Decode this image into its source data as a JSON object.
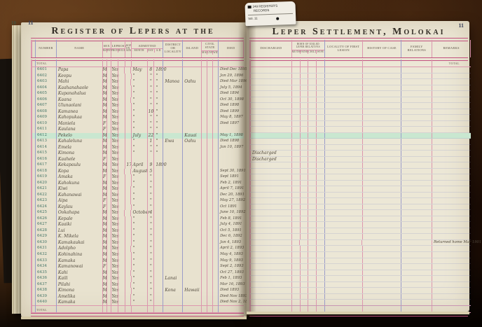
{
  "book": {
    "left_page": {
      "page_number": "11",
      "prev_page_number": "10",
      "title": "Register of Lepers at the",
      "total_label": "Total",
      "headers": {
        "number": "Number",
        "name": "Name",
        "sex": {
          "label": "Sex",
          "subs": [
            "Male",
            "Fem."
          ]
        },
        "leprosy": {
          "label": "Leprosy",
          "subs": [
            "Pron.",
            "Doubt."
          ]
        },
        "age": "Age on Adm.",
        "admitted": {
          "label": "Admitted",
          "subs": [
            "Month",
            "Day",
            "A.D."
          ]
        },
        "district": "District or Locality",
        "island": "Island",
        "civil": {
          "label": "Civil State",
          "subs": [
            "Mar.",
            "Unm.",
            "Wid."
          ]
        },
        "died": "Died"
      }
    },
    "right_page": {
      "page_number": "11",
      "title": "Leper Settlement, Molokai",
      "total_label": "Total",
      "headers": {
        "discharged": "Discharged",
        "born": {
          "label": "Born of Exiled Leper Relatives",
          "subs": [
            "Mother",
            "Father",
            "Child.",
            "Wife"
          ]
        },
        "locality": "Locality of First Lesion",
        "history": "History of Case",
        "family": "Family Relations",
        "remarks": "Remarks"
      }
    },
    "tag": {
      "line1": "249  REGISTER'S",
      "line2": "RECORDS",
      "line3": "Vol. 11"
    },
    "rows": [
      {
        "n": "6401",
        "name": "Papa",
        "sx": "M",
        "yes": "Yes",
        "m": "May",
        "d": "8",
        "y": "1890",
        "died": "Died Dec 1895"
      },
      {
        "n": "6402",
        "name": "Keopu",
        "sx": "M",
        "yes": "Yes",
        "m": "\"",
        "d": "\"",
        "y": "\"",
        "died": "Jan 29, 1896"
      },
      {
        "n": "6403",
        "name": "Mahi",
        "sx": "M",
        "yes": "Yes",
        "m": "\"",
        "d": "\"",
        "y": "\"",
        "dist": "Manoa",
        "isl": "Oahu",
        "died": "Died Mar 1896"
      },
      {
        "n": "6404",
        "name": "Kaahanahaole",
        "sx": "M",
        "yes": "Yes",
        "m": "\"",
        "d": "\"",
        "y": "\"",
        "died": "July 5, 1894"
      },
      {
        "n": "6405",
        "name": "Kupanahalua",
        "sx": "M",
        "yes": "Yes",
        "m": "\"",
        "d": "\"",
        "y": "\"",
        "died": "Died 1894"
      },
      {
        "n": "6406",
        "name": "Kaana",
        "sx": "M",
        "yes": "Yes",
        "m": "\"",
        "d": "\"",
        "y": "\"",
        "died": "Oct 30, 1898"
      },
      {
        "n": "6407",
        "name": "Ulunaolani",
        "sx": "M",
        "yes": "Yes",
        "m": "\"",
        "d": "\"",
        "y": "\"",
        "died": "Died 1898"
      },
      {
        "n": "6408",
        "name": "Kamanea",
        "sx": "M",
        "yes": "Yes",
        "m": "\"",
        "d": "10",
        "y": "\"",
        "died": "Died 1899"
      },
      {
        "n": "6409",
        "name": "Kahopukaa",
        "sx": "M",
        "yes": "Yes",
        "m": "\"",
        "d": "\"",
        "y": "\"",
        "died": "May 8, 1897"
      },
      {
        "n": "6410",
        "name": "Maniela",
        "sx": "F",
        "yes": "Yes",
        "m": "\"",
        "d": "\"",
        "y": "\"",
        "died": "Died 1897"
      },
      {
        "n": "6411",
        "name": "Kaulana",
        "sx": "F",
        "yes": "Yes",
        "m": "\"",
        "d": "\"",
        "y": "\""
      },
      {
        "n": "6412",
        "name": "Pekelo",
        "sx": "M",
        "yes": "Yes",
        "m": "July",
        "d": "22",
        "y": "\"",
        "isl": "Kauai",
        "died": "May 1, 1898",
        "hl": true
      },
      {
        "n": "6413",
        "name": "Kahaleluna",
        "sx": "M",
        "yes": "Yes",
        "m": "\"",
        "d": "1",
        "y": "\"",
        "dist": "Ewa",
        "isl": "Oahu",
        "died": "Died 1898"
      },
      {
        "n": "6414",
        "name": "Emela",
        "sx": "M",
        "yes": "Yes",
        "m": "\"",
        "d": "\"",
        "y": "\"",
        "died": "Jan 10, 1897"
      },
      {
        "n": "6415",
        "name": "Kimona",
        "sx": "M",
        "yes": "Yes",
        "m": "\"",
        "d": "\"",
        "y": "\"",
        "disch": "Discharged"
      },
      {
        "n": "6416",
        "name": "Kaahele",
        "sx": "F",
        "yes": "Yes",
        "disch": "Discharged"
      },
      {
        "n": "6417",
        "name": "Kekapaulu",
        "sx": "M",
        "yes": "Yes",
        "age": "17",
        "m": "April",
        "d": "9",
        "y": "1890"
      },
      {
        "n": "6418",
        "name": "Kopa",
        "sx": "M",
        "yes": "Yes",
        "m": "August",
        "d": "5",
        "died": "Sept 30, 1891"
      },
      {
        "n": "6419",
        "name": "Amaka",
        "sx": "F",
        "yes": "Yes",
        "m": "\"",
        "d": "\"",
        "died": "Sept 1891"
      },
      {
        "n": "6420",
        "name": "Kahokuna",
        "sx": "M",
        "yes": "Yes",
        "m": "\"",
        "d": "\"",
        "died": "Feb 2, 1891"
      },
      {
        "n": "6421",
        "name": "Kiwi",
        "sx": "M",
        "yes": "Yes",
        "m": "\"",
        "d": "\"",
        "died": "April 7, 1891"
      },
      {
        "n": "6422",
        "name": "Kahanawai",
        "sx": "M",
        "yes": "Yes",
        "m": "\"",
        "d": "\"",
        "died": "Dec 20, 1891"
      },
      {
        "n": "6423",
        "name": "Aipa",
        "sx": "F",
        "yes": "Yes",
        "m": "\"",
        "d": "\"",
        "died": "May 27, 1892"
      },
      {
        "n": "6424",
        "name": "Kaylau",
        "sx": "F",
        "yes": "Yes",
        "m": "\"",
        "d": "\"",
        "died": "Oct 1891"
      },
      {
        "n": "6425",
        "name": "Ookahapa",
        "sx": "M",
        "yes": "Yes",
        "m": "October",
        "d": "4",
        "died": "June 10, 1892"
      },
      {
        "n": "6426",
        "name": "Kepale",
        "sx": "M",
        "yes": "Yes",
        "m": "\"",
        "d": "\"",
        "died": "Feb 8, 1891"
      },
      {
        "n": "6427",
        "name": "Kaaiki",
        "sx": "M",
        "yes": "Yes",
        "m": "\"",
        "d": "\"",
        "died": "July 4, 1891"
      },
      {
        "n": "6428",
        "name": "Lui",
        "sx": "M",
        "yes": "Yes",
        "m": "\"",
        "d": "\"",
        "died": "Oct 5, 1891"
      },
      {
        "n": "6429",
        "name": "K. Mikela",
        "sx": "M",
        "yes": "Yes",
        "m": "\"",
        "d": "\"",
        "died": "Dec 6, 1892"
      },
      {
        "n": "6430",
        "name": "Kamakaukai",
        "sx": "M",
        "yes": "Yes",
        "m": "\"",
        "d": "\"",
        "died": "Jan 4, 1893",
        "rem": "Returned home Mar 1901"
      },
      {
        "n": "6431",
        "name": "Adolpho",
        "sx": "M",
        "yes": "Yes",
        "m": "\"",
        "d": "\"",
        "died": "April 2, 1893"
      },
      {
        "n": "6432",
        "name": "Kohinahina",
        "sx": "M",
        "yes": "Yes",
        "m": "\"",
        "d": "\"",
        "died": "May 4, 1893"
      },
      {
        "n": "6433",
        "name": "Kamaka",
        "sx": "M",
        "yes": "Yes",
        "m": "\"",
        "d": "\"",
        "died": "May 9, 1893"
      },
      {
        "n": "6434",
        "name": "Kamanowai",
        "sx": "F",
        "yes": "Yes",
        "m": "\"",
        "d": "\"",
        "died": "Sept 2, 1893"
      },
      {
        "n": "6435",
        "name": "Kahi",
        "sx": "M",
        "yes": "Yes",
        "m": "\"",
        "d": "\"",
        "died": "Oct 27, 1893"
      },
      {
        "n": "6436",
        "name": "Kaili",
        "sx": "M",
        "yes": "Yes",
        "m": "\"",
        "d": "\"",
        "dist": "Lanai",
        "died": "Feb 1, 1893"
      },
      {
        "n": "6437",
        "name": "Pilahi",
        "sx": "M",
        "yes": "Yes",
        "m": "\"",
        "d": "\"",
        "died": "Mar 16, 1893"
      },
      {
        "n": "6438",
        "name": "Kimona",
        "sx": "M",
        "yes": "Yes",
        "m": "\"",
        "d": "\"",
        "dist": "Kona",
        "isl": "Hawaii",
        "died": "Died 1893"
      },
      {
        "n": "6439",
        "name": "Amelika",
        "sx": "M",
        "yes": "Yes",
        "m": "\"",
        "d": "\"",
        "died": "Died Nov 1893"
      },
      {
        "n": "6440",
        "name": "Kamaka",
        "sx": "M",
        "yes": "Yes",
        "m": "\"",
        "d": "\"",
        "died": "Died Nov 2, 1893"
      }
    ]
  },
  "colors": {
    "rule_pink": "#dc96ae",
    "rule_magenta": "#c2527f",
    "rule_blue": "#9b9cc9",
    "page_left": "#e8e2cf",
    "page_right": "#ece7d6",
    "highlight_green": "#c9e7d0",
    "ink": "#50483c",
    "number_ink": "#3f7265",
    "wood": "#33200f"
  }
}
